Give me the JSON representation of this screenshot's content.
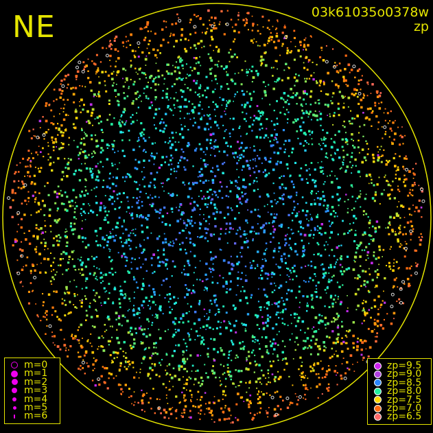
{
  "plot": {
    "direction_label": "NE",
    "frame_id": "03k61035o0378w",
    "color_key": "zp"
  },
  "chart_data": {
    "type": "scatter",
    "title": "03k61035o0378w",
    "color_variable": "zp",
    "frame": "circular all-sky field",
    "size_legend": {
      "position": "bottom-left",
      "entries": [
        {
          "label": "m=0",
          "hollow": true
        },
        {
          "label": "m=1"
        },
        {
          "label": "m=2"
        },
        {
          "label": "m=3"
        },
        {
          "label": "m=4"
        },
        {
          "label": "m=5"
        },
        {
          "label": "m=6"
        }
      ]
    },
    "color_legend": {
      "position": "bottom-right",
      "entries": [
        {
          "label": "zp=9.5",
          "zp": 9.5,
          "color": "#cc22ee"
        },
        {
          "label": "zp=9.0",
          "zp": 9.0,
          "color": "#b040e0"
        },
        {
          "label": "zp=8.5",
          "zp": 8.5,
          "color": "#2a86ff"
        },
        {
          "label": "zp=8.0",
          "zp": 8.0,
          "color": "#22f0a0"
        },
        {
          "label": "zp=7.5",
          "zp": 7.5,
          "color": "#ffd800"
        },
        {
          "label": "zp=7.0",
          "zp": 7.0,
          "color": "#ff6a10"
        },
        {
          "label": "zp=6.5",
          "zp": 6.5,
          "color": "#ff6a6a"
        }
      ]
    }
  },
  "colors": {
    "frame": "#e6e600",
    "background": "#000000",
    "legend_marker": "#ee00ee"
  }
}
